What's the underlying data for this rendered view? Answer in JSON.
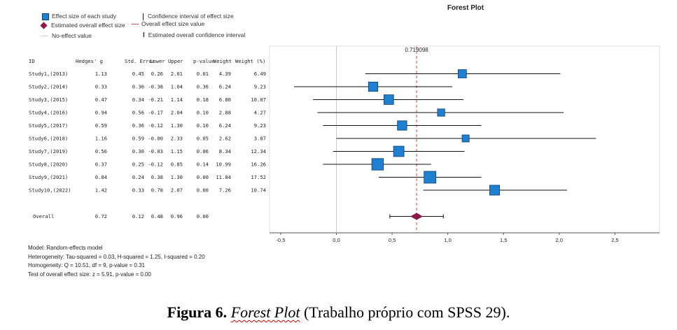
{
  "legend": {
    "study": "Effect size of each study",
    "ci": "Confidence interval of effect size",
    "overall": "Estimated overall effect size",
    "overall_value": "Overall effect size value",
    "no_effect": "No-effect value",
    "overall_ci": "Estimated overall confidence interval"
  },
  "table": {
    "headers": [
      "ID",
      "Hedges' g",
      "Std. Error",
      "Lower",
      "Upper",
      "p-value",
      "Weight",
      "Weight (%)"
    ],
    "rows": [
      [
        "Study1,(2013)",
        "1.13",
        "0.45",
        "0.26",
        "2.01",
        "0.01",
        "4.39",
        "6.49"
      ],
      [
        "Study2,(2014)",
        "0.33",
        "0.36",
        "-0.38",
        "1.04",
        "0.36",
        "6.24",
        "9.23"
      ],
      [
        "Study3,(2015)",
        "0.47",
        "0.34",
        "-0.21",
        "1.14",
        "0.18",
        "6.80",
        "10.07"
      ],
      [
        "Study4,(2016)",
        "0.94",
        "0.56",
        "-0.17",
        "2.04",
        "0.10",
        "2.88",
        "4.27"
      ],
      [
        "Study5,(2017)",
        "0.59",
        "0.36",
        "-0.12",
        "1.30",
        "0.10",
        "6.24",
        "9.23"
      ],
      [
        "Study6,(2018)",
        "1.16",
        "0.59",
        "-0.00",
        "2.33",
        "0.05",
        "2.62",
        "3.87"
      ],
      [
        "Study7,(2019)",
        "0.56",
        "0.30",
        "-0.03",
        "1.15",
        "0.06",
        "8.34",
        "12.34"
      ],
      [
        "Study8,(2020)",
        "0.37",
        "0.25",
        "-0.12",
        "0.85",
        "0.14",
        "10.99",
        "16.26"
      ],
      [
        "Study9,(2021)",
        "0.84",
        "0.24",
        "0.38",
        "1.30",
        "0.00",
        "11.84",
        "17.52"
      ],
      [
        "Study10,(2022)",
        "1.42",
        "0.33",
        "0.78",
        "2.07",
        "0.00",
        "7.26",
        "10.74"
      ]
    ],
    "overall": [
      "Overall",
      "0.72",
      "0.12",
      "0.48",
      "0.96",
      "0.00"
    ]
  },
  "chart_data": {
    "type": "forest",
    "title": "Forest Plot",
    "overall_label": "0.719098",
    "xlim": [
      -0.6,
      2.9
    ],
    "xticks": [
      "-0,5",
      "0,0",
      "0,5",
      "1,0",
      "1,5",
      "2,0",
      "2,5"
    ],
    "xtick_values": [
      -0.5,
      0,
      0.5,
      1,
      1.5,
      2,
      2.5
    ],
    "studies": [
      {
        "name": "Study1,(2013)",
        "g": 1.13,
        "lower": 0.26,
        "upper": 2.01,
        "weight_pct": 6.49
      },
      {
        "name": "Study2,(2014)",
        "g": 0.33,
        "lower": -0.38,
        "upper": 1.04,
        "weight_pct": 9.23
      },
      {
        "name": "Study3,(2015)",
        "g": 0.47,
        "lower": -0.21,
        "upper": 1.14,
        "weight_pct": 10.07
      },
      {
        "name": "Study4,(2016)",
        "g": 0.94,
        "lower": -0.17,
        "upper": 2.04,
        "weight_pct": 4.27
      },
      {
        "name": "Study5,(2017)",
        "g": 0.59,
        "lower": -0.12,
        "upper": 1.3,
        "weight_pct": 9.23
      },
      {
        "name": "Study6,(2018)",
        "g": 1.16,
        "lower": -0.0,
        "upper": 2.33,
        "weight_pct": 3.87
      },
      {
        "name": "Study7,(2019)",
        "g": 0.56,
        "lower": -0.03,
        "upper": 1.15,
        "weight_pct": 12.34
      },
      {
        "name": "Study8,(2020)",
        "g": 0.37,
        "lower": -0.12,
        "upper": 0.85,
        "weight_pct": 16.26
      },
      {
        "name": "Study9,(2021)",
        "g": 0.84,
        "lower": 0.38,
        "upper": 1.3,
        "weight_pct": 17.52
      },
      {
        "name": "Study10,(2022)",
        "g": 1.42,
        "lower": 0.78,
        "upper": 2.07,
        "weight_pct": 10.74
      }
    ],
    "overall": {
      "g": 0.72,
      "lower": 0.48,
      "upper": 0.96
    },
    "no_effect_value": 0,
    "colors": {
      "study": "#1f7fd1",
      "study_border": "#0d3f6e",
      "overall": "#8b1a4a",
      "overall_line": "#e04040",
      "null_line": "#c8c8c8"
    }
  },
  "model_info": {
    "model": "Model: Random-effects model",
    "heterogeneity": "Heterogeneity: Tau-squared = 0.03, H-squared = 1.25, I-squared = 0.20",
    "homogeneity": "Homogeneity: Q = 10.51, df = 9, p-value = 0.31",
    "test": "Test of overall effect size: z = 5.91, p-value = 0.00"
  },
  "caption": {
    "fig": "Figura 6.",
    "italic": "Forest Plot",
    "rest": " (Trabalho próprio com SPSS 29)."
  }
}
